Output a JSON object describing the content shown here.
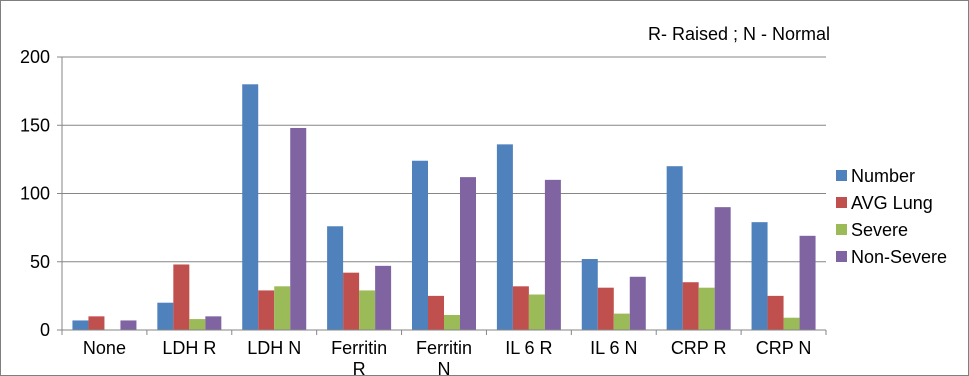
{
  "chart_data": {
    "type": "bar",
    "title": "",
    "xlabel": "",
    "ylabel": "",
    "annotation": "R- Raised ;  N - Normal",
    "categories": [
      [
        "None"
      ],
      [
        "LDH R"
      ],
      [
        "LDH N"
      ],
      [
        "Ferritin",
        "R"
      ],
      [
        "Ferritin",
        "N"
      ],
      [
        "IL 6 R"
      ],
      [
        "IL 6 N"
      ],
      [
        "CRP R"
      ],
      [
        "CRP N"
      ]
    ],
    "series": [
      {
        "name": "Number",
        "color": "#4f81bd",
        "values": [
          7,
          20,
          180,
          76,
          124,
          136,
          52,
          120,
          79
        ]
      },
      {
        "name": "AVG Lung",
        "color": "#c0504d",
        "values": [
          10,
          48,
          29,
          42,
          25,
          32,
          31,
          35,
          25
        ]
      },
      {
        "name": "Severe",
        "color": "#9bbb59",
        "values": [
          0,
          8,
          32,
          29,
          11,
          26,
          12,
          31,
          9
        ]
      },
      {
        "name": "Non-Severe",
        "color": "#8064a2",
        "values": [
          7,
          10,
          148,
          47,
          112,
          110,
          39,
          90,
          69
        ]
      }
    ],
    "ylim": [
      0,
      200
    ],
    "yticks": [
      0,
      50,
      100,
      150,
      200
    ],
    "grid": true,
    "legend_position": "right"
  }
}
